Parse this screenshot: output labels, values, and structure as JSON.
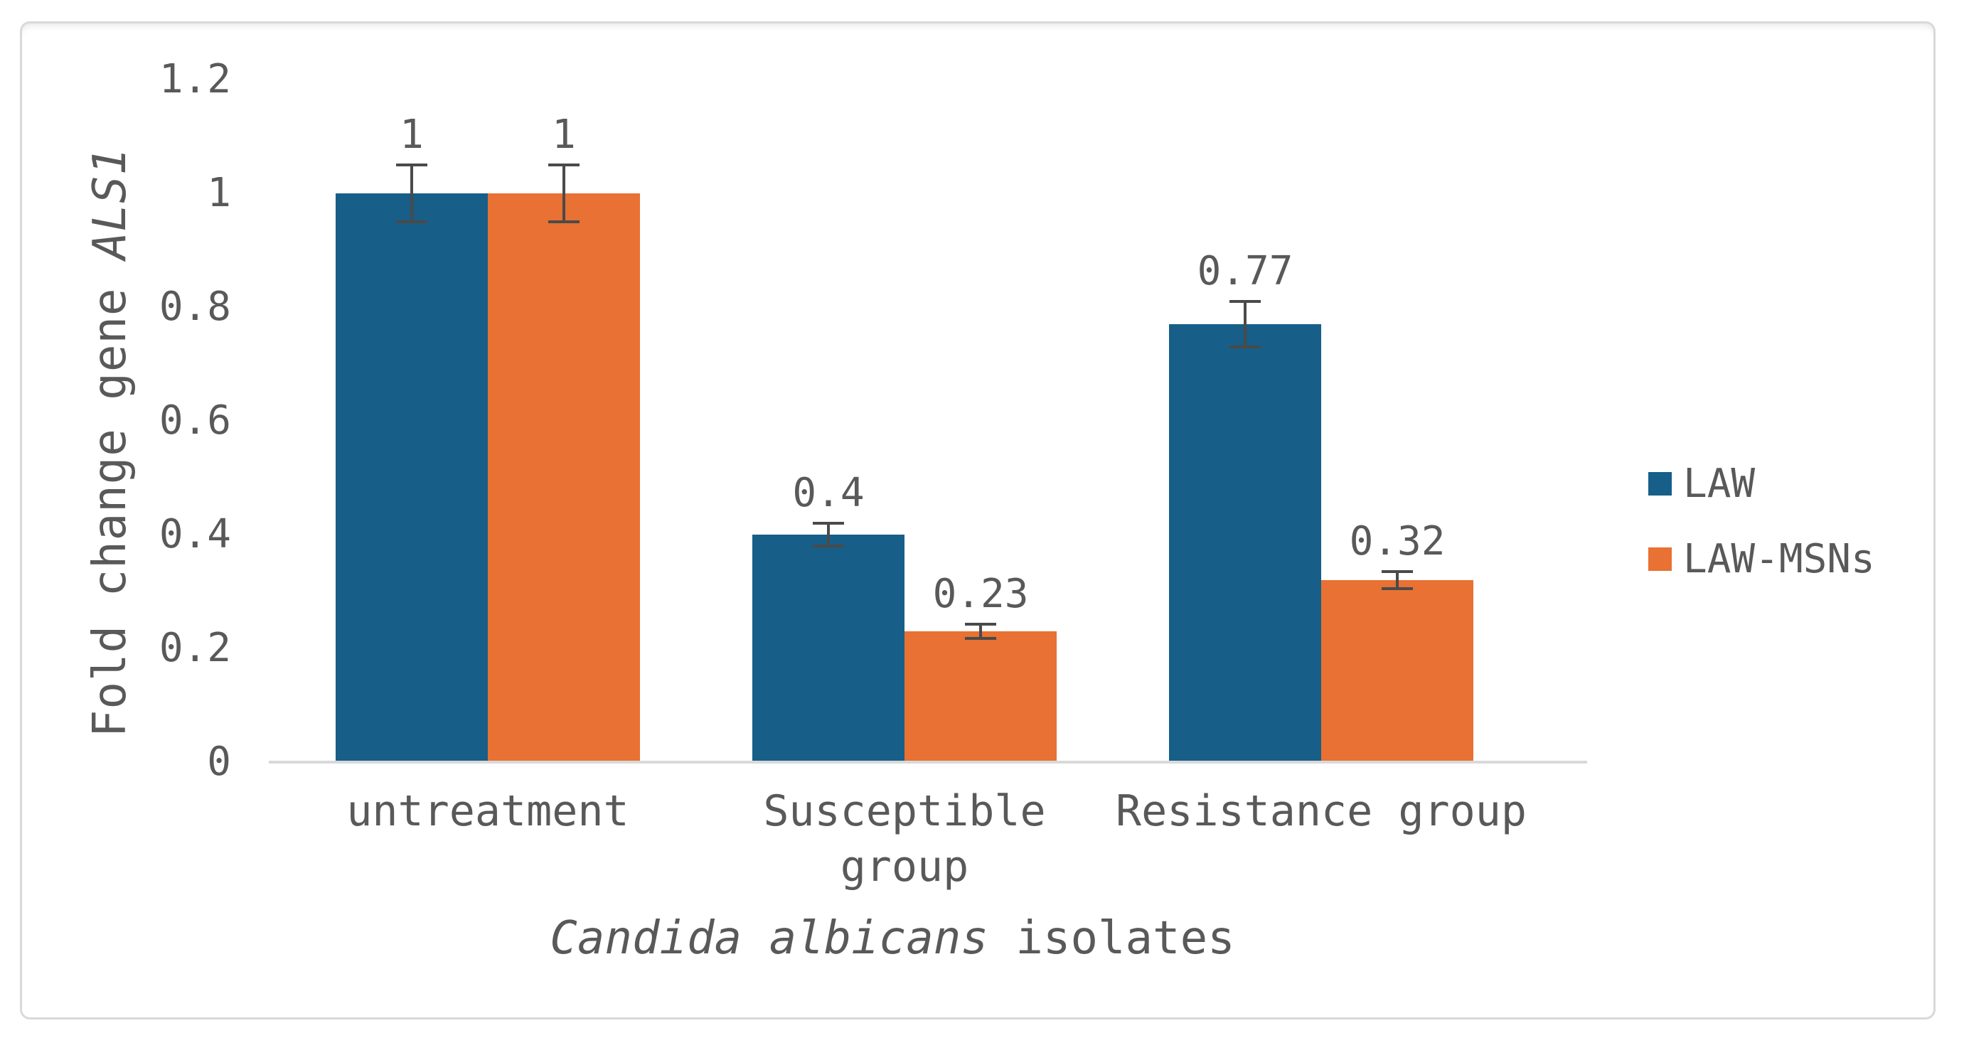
{
  "chart_data": {
    "type": "bar",
    "title": "",
    "categories": [
      "untreatment",
      "Susceptible group",
      "Resistance group"
    ],
    "category_lines": [
      [
        "untreatment"
      ],
      [
        "Susceptible",
        "group"
      ],
      [
        "Resistance group"
      ]
    ],
    "series": [
      {
        "name": "LAW",
        "color": "#175f88",
        "values": [
          1,
          0.4,
          0.77
        ],
        "errors": [
          0.05,
          0.02,
          0.04
        ],
        "data_labels": [
          "1",
          "0.4",
          "0.77"
        ]
      },
      {
        "name": "LAW-MSNs",
        "color": "#e87133",
        "values": [
          1,
          0.23,
          0.32
        ],
        "errors": [
          0.05,
          0.012,
          0.015
        ],
        "data_labels": [
          "1",
          "0.23",
          "0.32"
        ]
      }
    ],
    "error_bars": true,
    "xlabel": "Candida albicans isolates",
    "xlabel_italic": "Candida albicans",
    "xlabel_regular": " isolates",
    "ylabel": "Fold change gene ALS1",
    "ylabel_regular": "Fold change gene ",
    "ylabel_italic": "ALS1",
    "ylim": [
      0,
      1.2
    ],
    "yticks": [
      1.2,
      1,
      0.8,
      0.6,
      0.4,
      0.2,
      0
    ],
    "ytick_labels": [
      "1.2",
      "1",
      "0.8",
      "0.6",
      "0.4",
      "0.2",
      "0"
    ],
    "grid": false,
    "legend_position": "right",
    "colors": {
      "text": "#595959",
      "axis_line": "#d9d9d9",
      "frame_border": "#d9d9d9",
      "error_bar": "#4a4a4a"
    }
  }
}
